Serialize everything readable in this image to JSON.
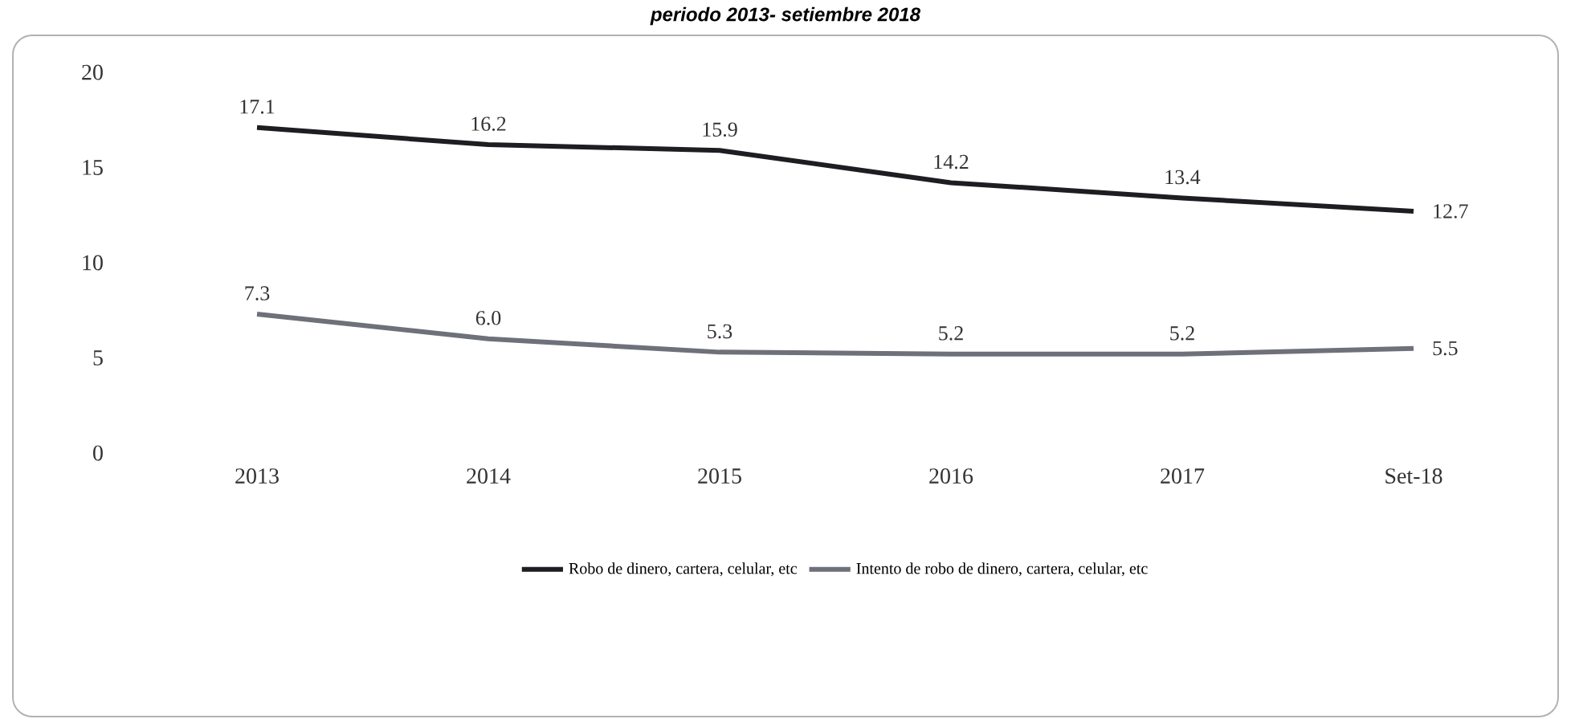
{
  "chart_data": {
    "type": "line",
    "title": "periodo 2013- setiembre 2018",
    "categories": [
      "2013",
      "2014",
      "2015",
      "2016",
      "2017",
      "Set-18"
    ],
    "series": [
      {
        "name": "Robo de dinero, cartera, celular, etc",
        "color": "#1e1e22",
        "values": [
          17.1,
          16.2,
          15.9,
          14.2,
          13.4,
          12.7
        ],
        "value_labels": [
          "17.1",
          "16.2",
          "15.9",
          "14.2",
          "13.4",
          "12.7"
        ]
      },
      {
        "name": "Intento de robo de dinero, cartera, celular, etc",
        "color": "#6e707a",
        "values": [
          7.3,
          6.0,
          5.3,
          5.2,
          5.2,
          5.5
        ],
        "value_labels": [
          "7.3",
          "6.0",
          "5.3",
          "5.2",
          "5.2",
          "5.5"
        ]
      }
    ],
    "ylim": [
      0,
      20
    ],
    "yticks": [
      0,
      5,
      10,
      15,
      20
    ],
    "legend": "bottom",
    "marker": "none",
    "line_style": "solid"
  }
}
